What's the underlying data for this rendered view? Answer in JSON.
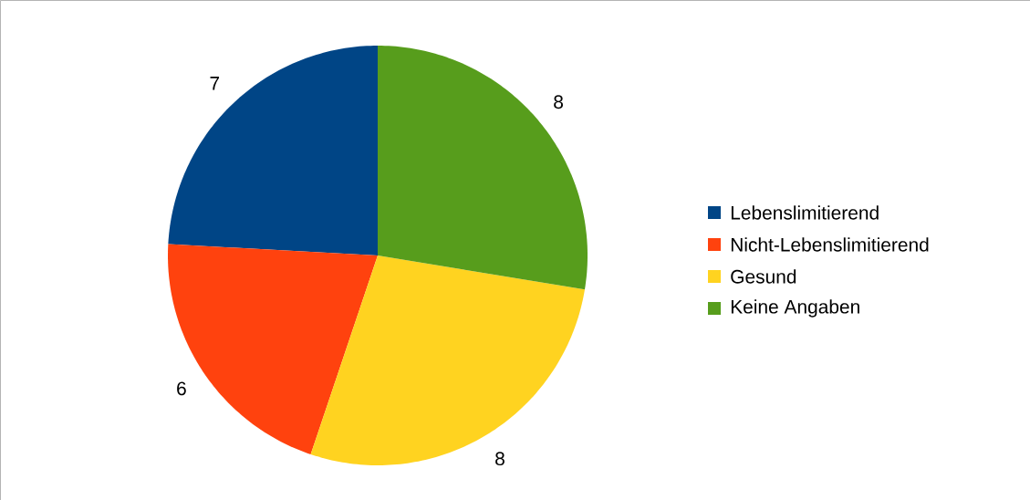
{
  "chart_data": {
    "type": "pie",
    "categories": [
      "Lebenslimitierend",
      "Nicht-Lebenslimitierend",
      "Gesund",
      "Keine Angaben"
    ],
    "values": [
      7,
      6,
      8,
      8
    ],
    "colors": [
      "#004586",
      "#ff420e",
      "#ffd320",
      "#579d1c"
    ],
    "data_labels": true,
    "legend": "right"
  }
}
